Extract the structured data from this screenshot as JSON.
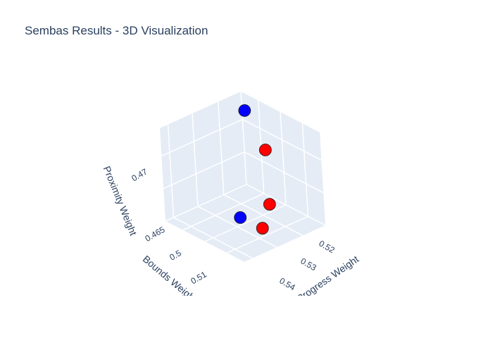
{
  "chart_data": {
    "type": "scatter",
    "projection": "3d",
    "title": "Sembas Results - 3D Visualization",
    "axes": {
      "x": {
        "label": "Bounds Weight",
        "ticks": [
          "0.5",
          "0.51"
        ]
      },
      "y": {
        "label": "Progress Weight",
        "ticks": [
          "0.52",
          "0.53",
          "0.54"
        ]
      },
      "z": {
        "label": "Proximity Weight",
        "ticks": [
          "0.465",
          "0.47"
        ]
      }
    },
    "grid": true,
    "legend": "none",
    "series": [
      {
        "color": "#0000ff",
        "points": [
          {
            "x": 0.494,
            "y": 0.515,
            "z": 0.473
          },
          {
            "x": 0.512,
            "y": 0.542,
            "z": 0.468
          }
        ]
      },
      {
        "color": "#ff0000",
        "points": [
          {
            "x": 0.497,
            "y": 0.529,
            "z": 0.471
          },
          {
            "x": 0.499,
            "y": 0.533,
            "z": 0.466
          },
          {
            "x": 0.508,
            "y": 0.545,
            "z": 0.4665
          }
        ]
      }
    ]
  }
}
